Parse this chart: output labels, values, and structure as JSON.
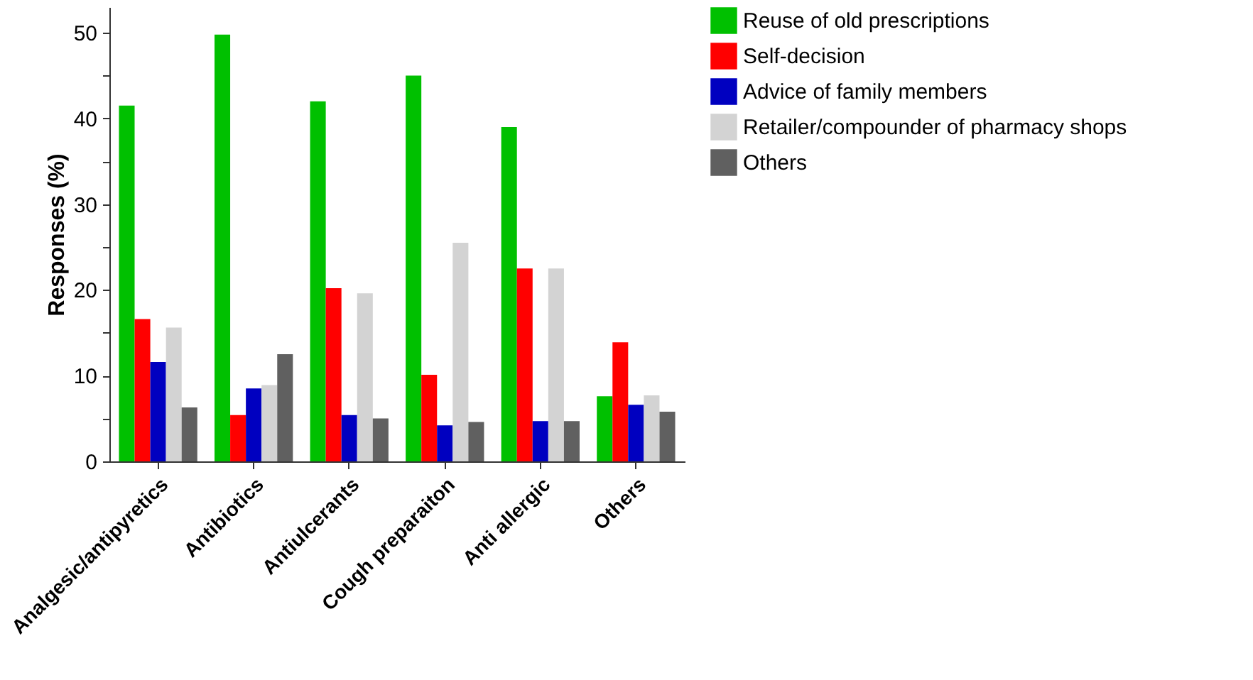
{
  "chart_data": {
    "type": "bar",
    "ylabel": "Responses (%)",
    "categories": [
      "Analgesic/antipyretics",
      "Antibiotics",
      "Antiulcerants",
      "Cough preparaiton",
      "Anti allergic",
      "Others"
    ],
    "series": [
      {
        "name": "Reuse of old prescriptions",
        "color": "#00c000",
        "values": [
          41.5,
          49.8,
          42,
          45,
          39,
          7.6
        ]
      },
      {
        "name": "Self-decision",
        "color": "#ff0000",
        "values": [
          16.6,
          5.4,
          20.2,
          10.1,
          22.5,
          13.9
        ]
      },
      {
        "name": "Advice of family members",
        "color": "#0000c0",
        "values": [
          11.6,
          8.5,
          5.4,
          4.2,
          4.7,
          6.6
        ]
      },
      {
        "name": "Retailer/compounder of pharmacy shops",
        "color": "#d3d3d3",
        "values": [
          15.6,
          8.9,
          19.6,
          25.5,
          22.5,
          7.7
        ]
      },
      {
        "name": "Others",
        "color": "#606060",
        "values": [
          6.3,
          12.5,
          5.0,
          4.6,
          4.7,
          5.8
        ]
      }
    ],
    "ylim": [
      0,
      53
    ],
    "yticks": [
      0,
      {
        "value": 5,
        "label": null
      },
      10,
      {
        "value": 15,
        "label": null
      },
      20,
      {
        "value": 25,
        "label": null
      },
      30,
      {
        "value": 35,
        "label": null
      },
      40,
      {
        "value": 45,
        "label": null
      },
      50
    ],
    "grid": false,
    "legend": "top right"
  }
}
